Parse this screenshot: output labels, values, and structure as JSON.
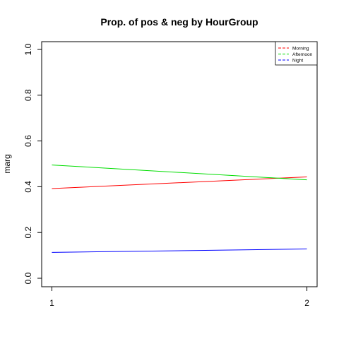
{
  "chart_data": {
    "type": "line",
    "title": "Prop. of pos & neg by HourGroup",
    "xlabel": "",
    "ylabel": "marg",
    "x": [
      1,
      2
    ],
    "xticks": [
      "1",
      "2"
    ],
    "xlim": [
      0.96,
      2.04
    ],
    "ylim": [
      0.0,
      1.0
    ],
    "yticks": [
      "0.0",
      "0.2",
      "0.4",
      "0.6",
      "0.8",
      "1.0"
    ],
    "grid": false,
    "legend_position": "top-right",
    "series": [
      {
        "name": "Morning",
        "color": "#ff0000",
        "dash": "long",
        "values": [
          0.392,
          0.443
        ]
      },
      {
        "name": "Afternoon",
        "color": "#00dd00",
        "dash": "long",
        "values": [
          0.495,
          0.43
        ]
      },
      {
        "name": "Night",
        "color": "#0000ff",
        "dash": "long",
        "values": [
          0.113,
          0.128
        ]
      }
    ]
  }
}
